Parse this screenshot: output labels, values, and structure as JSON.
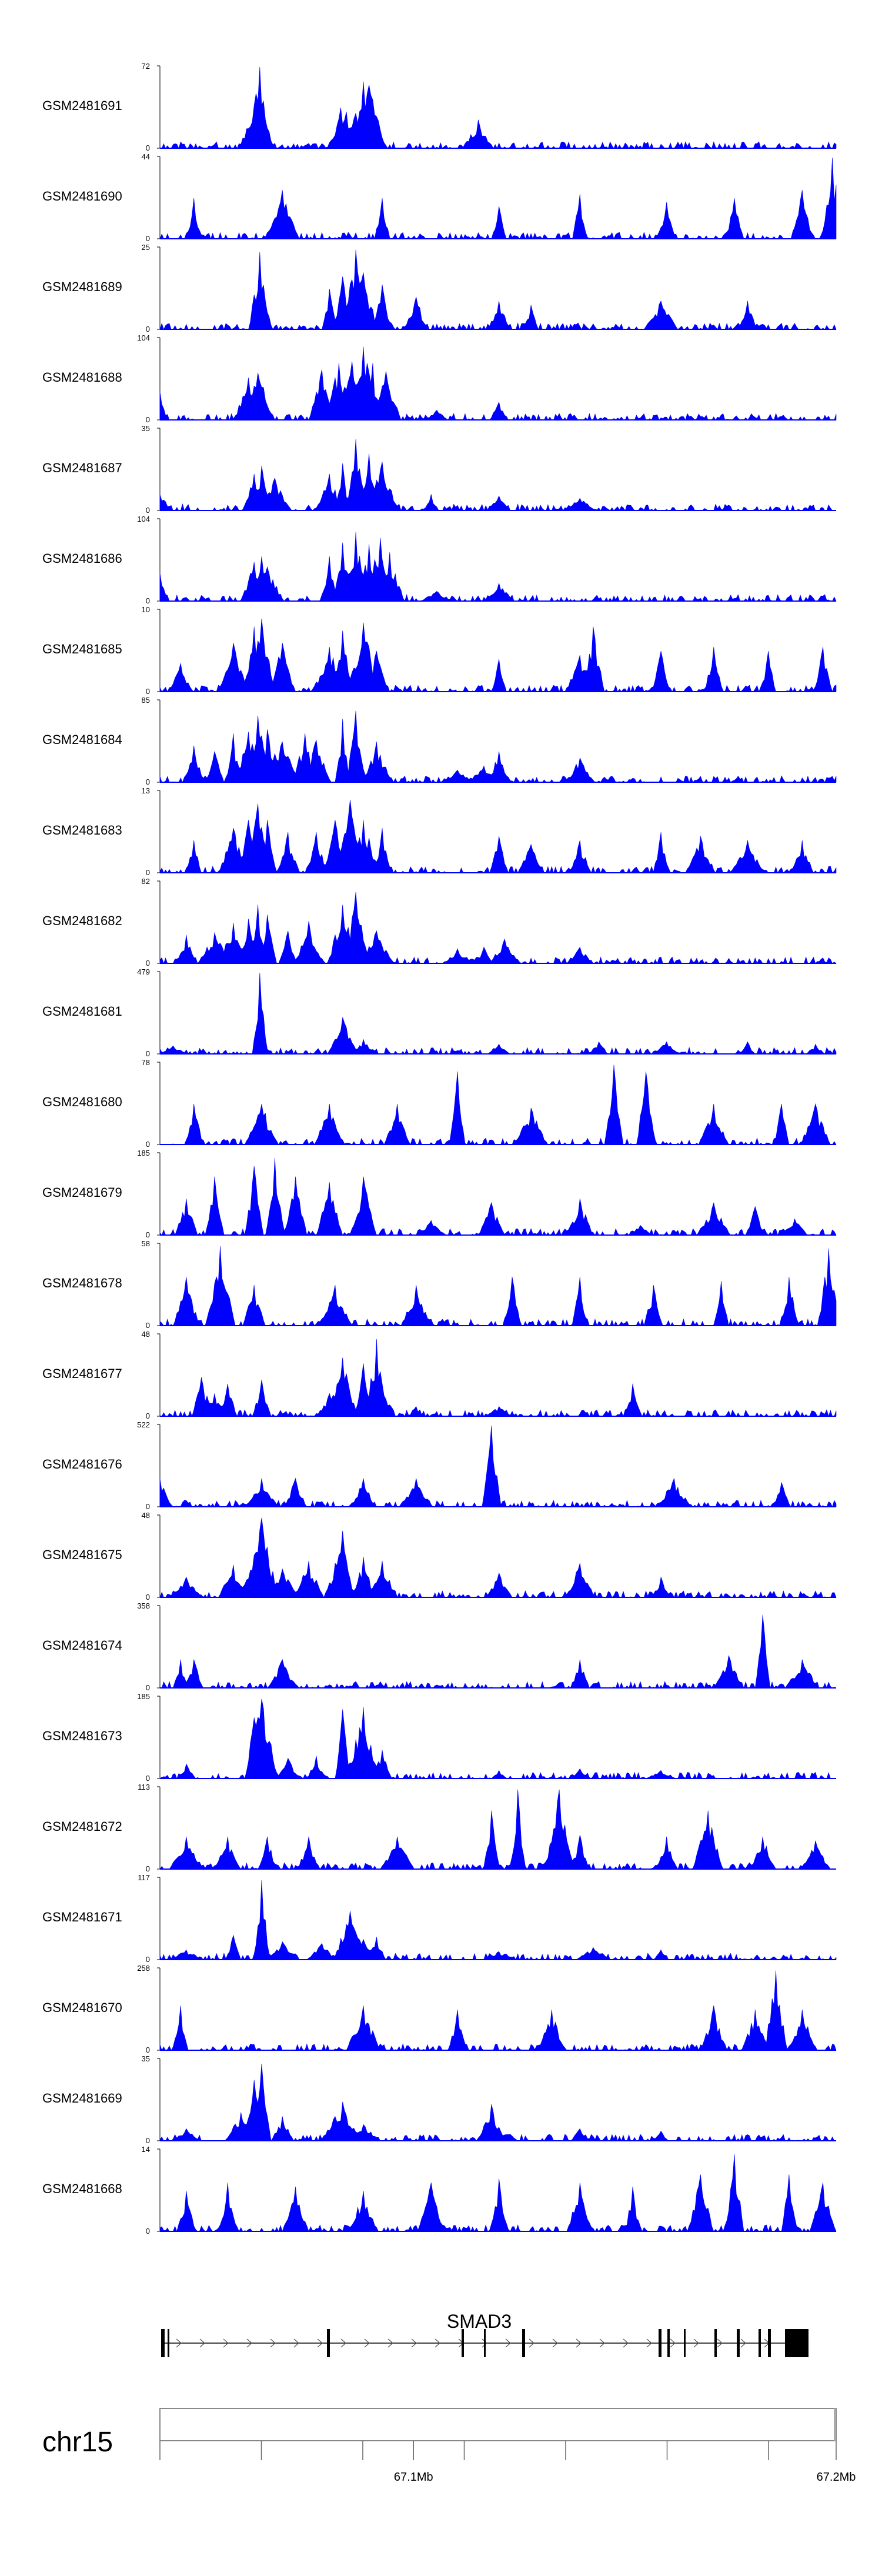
{
  "chart_data": {
    "type": "area",
    "title": "",
    "signal_color": "#0000ff",
    "region": "chr15",
    "gene_name": "SMAD3",
    "x_axis": {
      "range_mb": [
        67.04,
        67.2
      ],
      "ticks_mb": [
        67.04,
        67.064,
        67.088,
        67.1,
        67.112,
        67.136,
        67.16,
        67.184,
        67.2
      ],
      "labels": [
        {
          "pos": 67.1,
          "text": "67.1Mb"
        },
        {
          "pos": 67.2,
          "text": "67.2Mb"
        }
      ]
    },
    "tracks": [
      {
        "name": "GSM2481691",
        "ymax": 72,
        "peaks": [
          [
            0.15,
            0.35
          ],
          [
            0.14,
            0.5
          ],
          [
            0.145,
            0.55
          ],
          [
            0.148,
            1.0
          ],
          [
            0.3,
            0.82
          ],
          [
            0.268,
            0.5
          ],
          [
            0.275,
            0.45
          ],
          [
            0.47,
            0.35
          ],
          [
            0.31,
            0.78
          ],
          [
            0.15,
            0.2
          ]
        ]
      },
      {
        "name": "GSM2481690",
        "ymax": 44,
        "peaks": [
          [
            0.05,
            0.5
          ],
          [
            0.18,
            0.6
          ],
          [
            0.33,
            0.5
          ],
          [
            0.5,
            0.4
          ],
          [
            0.62,
            0.55
          ],
          [
            0.75,
            0.45
          ],
          [
            0.85,
            0.5
          ],
          [
            0.95,
            0.6
          ],
          [
            0.995,
            1.0
          ]
        ]
      },
      {
        "name": "GSM2481689",
        "ymax": 25,
        "peaks": [
          [
            0.148,
            0.95
          ],
          [
            0.25,
            0.5
          ],
          [
            0.27,
            0.65
          ],
          [
            0.29,
            0.98
          ],
          [
            0.3,
            0.7
          ],
          [
            0.33,
            0.55
          ],
          [
            0.38,
            0.4
          ],
          [
            0.5,
            0.35
          ],
          [
            0.55,
            0.3
          ],
          [
            0.74,
            0.35
          ],
          [
            0.87,
            0.35
          ]
        ]
      },
      {
        "name": "GSM2481688",
        "ymax": 104,
        "peaks": [
          [
            0.0,
            0.35
          ],
          [
            0.13,
            0.52
          ],
          [
            0.145,
            0.58
          ],
          [
            0.152,
            0.4
          ],
          [
            0.24,
            0.62
          ],
          [
            0.265,
            0.7
          ],
          [
            0.283,
            0.72
          ],
          [
            0.3,
            0.9
          ],
          [
            0.315,
            0.7
          ],
          [
            0.335,
            0.6
          ],
          [
            0.41,
            0.12
          ],
          [
            0.5,
            0.22
          ]
        ]
      },
      {
        "name": "GSM2481687",
        "ymax": 35,
        "peaks": [
          [
            0.0,
            0.2
          ],
          [
            0.14,
            0.45
          ],
          [
            0.15,
            0.55
          ],
          [
            0.17,
            0.4
          ],
          [
            0.25,
            0.45
          ],
          [
            0.27,
            0.58
          ],
          [
            0.29,
            0.88
          ],
          [
            0.31,
            0.7
          ],
          [
            0.33,
            0.6
          ],
          [
            0.4,
            0.2
          ],
          [
            0.5,
            0.18
          ],
          [
            0.62,
            0.15
          ]
        ]
      },
      {
        "name": "GSM2481686",
        "ymax": 104,
        "peaks": [
          [
            0.0,
            0.35
          ],
          [
            0.14,
            0.48
          ],
          [
            0.15,
            0.55
          ],
          [
            0.16,
            0.42
          ],
          [
            0.25,
            0.55
          ],
          [
            0.27,
            0.72
          ],
          [
            0.29,
            0.85
          ],
          [
            0.31,
            0.7
          ],
          [
            0.325,
            0.78
          ],
          [
            0.34,
            0.6
          ],
          [
            0.41,
            0.12
          ],
          [
            0.5,
            0.22
          ]
        ]
      },
      {
        "name": "GSM2481685",
        "ymax": 10,
        "peaks": [
          [
            0.03,
            0.35
          ],
          [
            0.11,
            0.6
          ],
          [
            0.14,
            0.8
          ],
          [
            0.15,
            0.9
          ],
          [
            0.18,
            0.6
          ],
          [
            0.25,
            0.55
          ],
          [
            0.27,
            0.75
          ],
          [
            0.3,
            0.85
          ],
          [
            0.32,
            0.5
          ],
          [
            0.5,
            0.4
          ],
          [
            0.62,
            0.45
          ],
          [
            0.64,
            0.8
          ],
          [
            0.74,
            0.5
          ],
          [
            0.82,
            0.55
          ],
          [
            0.9,
            0.5
          ],
          [
            0.98,
            0.55
          ]
        ]
      },
      {
        "name": "GSM2481684",
        "ymax": 85,
        "peaks": [
          [
            0.05,
            0.45
          ],
          [
            0.08,
            0.38
          ],
          [
            0.11,
            0.6
          ],
          [
            0.13,
            0.62
          ],
          [
            0.145,
            0.82
          ],
          [
            0.16,
            0.65
          ],
          [
            0.18,
            0.5
          ],
          [
            0.215,
            0.6
          ],
          [
            0.23,
            0.52
          ],
          [
            0.27,
            0.78
          ],
          [
            0.29,
            0.88
          ],
          [
            0.32,
            0.5
          ],
          [
            0.44,
            0.15
          ],
          [
            0.48,
            0.2
          ],
          [
            0.5,
            0.38
          ],
          [
            0.62,
            0.3
          ]
        ]
      },
      {
        "name": "GSM2481683",
        "ymax": 13,
        "peaks": [
          [
            0.05,
            0.4
          ],
          [
            0.11,
            0.55
          ],
          [
            0.13,
            0.65
          ],
          [
            0.145,
            0.85
          ],
          [
            0.16,
            0.65
          ],
          [
            0.19,
            0.5
          ],
          [
            0.23,
            0.5
          ],
          [
            0.26,
            0.65
          ],
          [
            0.28,
            0.9
          ],
          [
            0.3,
            0.65
          ],
          [
            0.33,
            0.55
          ],
          [
            0.5,
            0.45
          ],
          [
            0.55,
            0.35
          ],
          [
            0.62,
            0.4
          ],
          [
            0.74,
            0.5
          ],
          [
            0.8,
            0.45
          ],
          [
            0.87,
            0.4
          ],
          [
            0.95,
            0.4
          ]
        ]
      },
      {
        "name": "GSM2481682",
        "ymax": 82,
        "peaks": [
          [
            0.04,
            0.35
          ],
          [
            0.08,
            0.38
          ],
          [
            0.11,
            0.5
          ],
          [
            0.13,
            0.55
          ],
          [
            0.145,
            0.72
          ],
          [
            0.16,
            0.6
          ],
          [
            0.19,
            0.4
          ],
          [
            0.22,
            0.52
          ],
          [
            0.27,
            0.72
          ],
          [
            0.29,
            0.88
          ],
          [
            0.32,
            0.4
          ],
          [
            0.44,
            0.18
          ],
          [
            0.48,
            0.2
          ],
          [
            0.51,
            0.3
          ],
          [
            0.62,
            0.2
          ]
        ]
      },
      {
        "name": "GSM2481681",
        "ymax": 479,
        "peaks": [
          [
            0.148,
            1.0
          ],
          [
            0.27,
            0.45
          ],
          [
            0.02,
            0.1
          ],
          [
            0.3,
            0.18
          ],
          [
            0.5,
            0.12
          ],
          [
            0.65,
            0.15
          ],
          [
            0.75,
            0.15
          ],
          [
            0.87,
            0.15
          ],
          [
            0.97,
            0.12
          ]
        ]
      },
      {
        "name": "GSM2481680",
        "ymax": 78,
        "peaks": [
          [
            0.05,
            0.5
          ],
          [
            0.15,
            0.5
          ],
          [
            0.25,
            0.5
          ],
          [
            0.35,
            0.5
          ],
          [
            0.44,
            0.9
          ],
          [
            0.55,
            0.45
          ],
          [
            0.67,
            0.98
          ],
          [
            0.72,
            0.9
          ],
          [
            0.82,
            0.5
          ],
          [
            0.92,
            0.5
          ],
          [
            0.97,
            0.5
          ]
        ]
      },
      {
        "name": "GSM2481679",
        "ymax": 185,
        "peaks": [
          [
            0.04,
            0.45
          ],
          [
            0.08,
            0.72
          ],
          [
            0.14,
            0.85
          ],
          [
            0.17,
            0.95
          ],
          [
            0.2,
            0.72
          ],
          [
            0.25,
            0.65
          ],
          [
            0.3,
            0.72
          ],
          [
            0.4,
            0.18
          ],
          [
            0.49,
            0.4
          ],
          [
            0.62,
            0.45
          ],
          [
            0.71,
            0.12
          ],
          [
            0.82,
            0.4
          ],
          [
            0.88,
            0.35
          ],
          [
            0.94,
            0.2
          ]
        ]
      },
      {
        "name": "GSM2481678",
        "ymax": 58,
        "peaks": [
          [
            0.04,
            0.6
          ],
          [
            0.09,
            0.98
          ],
          [
            0.14,
            0.5
          ],
          [
            0.26,
            0.5
          ],
          [
            0.38,
            0.5
          ],
          [
            0.52,
            0.6
          ],
          [
            0.62,
            0.6
          ],
          [
            0.73,
            0.5
          ],
          [
            0.83,
            0.55
          ],
          [
            0.93,
            0.6
          ],
          [
            0.99,
            0.95
          ]
        ]
      },
      {
        "name": "GSM2481677",
        "ymax": 48,
        "peaks": [
          [
            0.06,
            0.48
          ],
          [
            0.07,
            0.25
          ],
          [
            0.08,
            0.28
          ],
          [
            0.1,
            0.4
          ],
          [
            0.15,
            0.45
          ],
          [
            0.25,
            0.28
          ],
          [
            0.27,
            0.72
          ],
          [
            0.3,
            0.65
          ],
          [
            0.32,
            0.95
          ],
          [
            0.33,
            0.4
          ],
          [
            0.38,
            0.12
          ],
          [
            0.5,
            0.12
          ],
          [
            0.7,
            0.4
          ]
        ]
      },
      {
        "name": "GSM2481676",
        "ymax": 522,
        "peaks": [
          [
            0.0,
            0.35
          ],
          [
            0.15,
            0.35
          ],
          [
            0.2,
            0.35
          ],
          [
            0.3,
            0.35
          ],
          [
            0.38,
            0.35
          ],
          [
            0.49,
            1.0
          ],
          [
            0.76,
            0.35
          ],
          [
            0.92,
            0.3
          ]
        ]
      },
      {
        "name": "GSM2481675",
        "ymax": 48,
        "peaks": [
          [
            0.04,
            0.25
          ],
          [
            0.11,
            0.4
          ],
          [
            0.14,
            0.52
          ],
          [
            0.15,
            0.98
          ],
          [
            0.18,
            0.35
          ],
          [
            0.22,
            0.45
          ],
          [
            0.26,
            0.42
          ],
          [
            0.27,
            0.82
          ],
          [
            0.3,
            0.5
          ],
          [
            0.33,
            0.45
          ],
          [
            0.5,
            0.3
          ],
          [
            0.62,
            0.42
          ],
          [
            0.74,
            0.25
          ]
        ]
      },
      {
        "name": "GSM2481674",
        "ymax": 358,
        "peaks": [
          [
            0.03,
            0.35
          ],
          [
            0.05,
            0.35
          ],
          [
            0.18,
            0.35
          ],
          [
            0.62,
            0.35
          ],
          [
            0.84,
            0.4
          ],
          [
            0.89,
            0.9
          ],
          [
            0.95,
            0.35
          ]
        ]
      },
      {
        "name": "GSM2481673",
        "ymax": 185,
        "peaks": [
          [
            0.04,
            0.18
          ],
          [
            0.14,
            0.75
          ],
          [
            0.15,
            0.98
          ],
          [
            0.19,
            0.25
          ],
          [
            0.23,
            0.28
          ],
          [
            0.27,
            0.85
          ],
          [
            0.3,
            0.88
          ],
          [
            0.33,
            0.35
          ],
          [
            0.5,
            0.1
          ],
          [
            0.62,
            0.12
          ],
          [
            0.74,
            0.1
          ]
        ]
      },
      {
        "name": "GSM2481672",
        "ymax": 113,
        "peaks": [
          [
            0.04,
            0.4
          ],
          [
            0.1,
            0.4
          ],
          [
            0.16,
            0.4
          ],
          [
            0.22,
            0.4
          ],
          [
            0.35,
            0.4
          ],
          [
            0.49,
            0.72
          ],
          [
            0.53,
            0.98
          ],
          [
            0.59,
            0.98
          ],
          [
            0.62,
            0.42
          ],
          [
            0.75,
            0.4
          ],
          [
            0.81,
            0.72
          ],
          [
            0.89,
            0.4
          ],
          [
            0.97,
            0.35
          ]
        ]
      },
      {
        "name": "GSM2481671",
        "ymax": 117,
        "peaks": [
          [
            0.04,
            0.12
          ],
          [
            0.11,
            0.3
          ],
          [
            0.15,
            0.98
          ],
          [
            0.18,
            0.22
          ],
          [
            0.24,
            0.2
          ],
          [
            0.28,
            0.6
          ],
          [
            0.3,
            0.25
          ],
          [
            0.32,
            0.28
          ],
          [
            0.5,
            0.1
          ],
          [
            0.64,
            0.15
          ],
          [
            0.74,
            0.12
          ]
        ]
      },
      {
        "name": "GSM2481670",
        "ymax": 258,
        "peaks": [
          [
            0.03,
            0.55
          ],
          [
            0.15,
            0.0
          ],
          [
            0.3,
            0.55
          ],
          [
            0.37,
            0.0
          ],
          [
            0.44,
            0.5
          ],
          [
            0.51,
            0.0
          ],
          [
            0.58,
            0.5
          ],
          [
            0.7,
            0.0
          ],
          [
            0.82,
            0.55
          ],
          [
            0.88,
            0.5
          ],
          [
            0.91,
            0.98
          ],
          [
            0.95,
            0.5
          ]
        ]
      },
      {
        "name": "GSM2481669",
        "ymax": 35,
        "peaks": [
          [
            0.04,
            0.15
          ],
          [
            0.12,
            0.35
          ],
          [
            0.14,
            0.75
          ],
          [
            0.15,
            0.95
          ],
          [
            0.18,
            0.3
          ],
          [
            0.26,
            0.3
          ],
          [
            0.27,
            0.48
          ],
          [
            0.3,
            0.2
          ],
          [
            0.49,
            0.45
          ],
          [
            0.62,
            0.15
          ],
          [
            0.74,
            0.12
          ]
        ]
      },
      {
        "name": "GSM2481668",
        "ymax": 14,
        "peaks": [
          [
            0.04,
            0.5
          ],
          [
            0.1,
            0.6
          ],
          [
            0.2,
            0.55
          ],
          [
            0.3,
            0.5
          ],
          [
            0.4,
            0.6
          ],
          [
            0.5,
            0.65
          ],
          [
            0.62,
            0.6
          ],
          [
            0.7,
            0.55
          ],
          [
            0.8,
            0.7
          ],
          [
            0.85,
            0.95
          ],
          [
            0.93,
            0.7
          ],
          [
            0.98,
            0.6
          ]
        ]
      }
    ]
  }
}
